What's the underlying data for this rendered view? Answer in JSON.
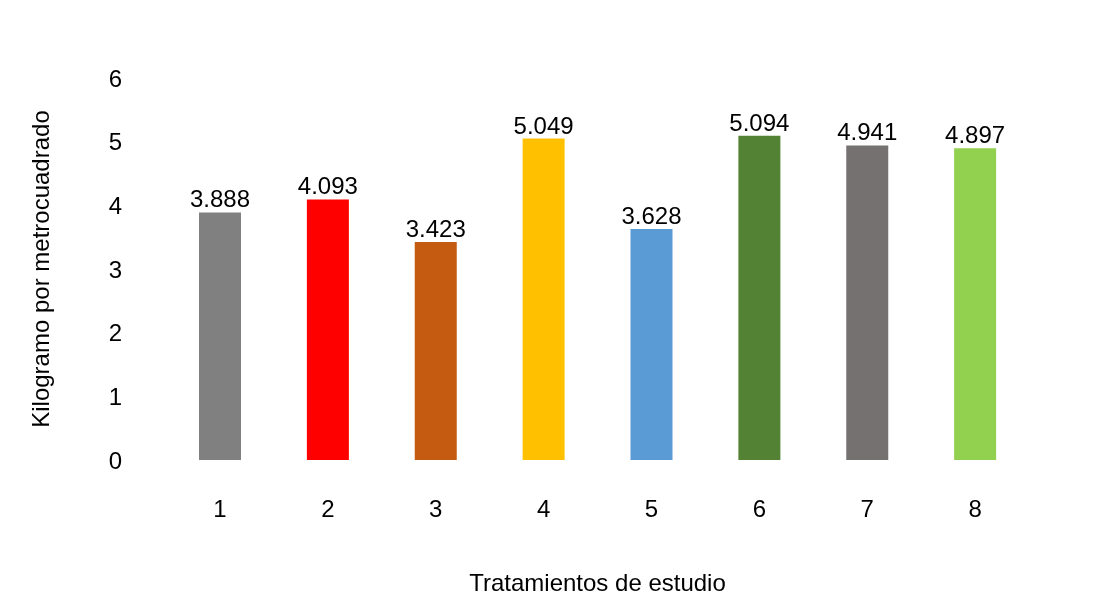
{
  "chart_data": {
    "type": "bar",
    "xlabel": "Tratamientos de estudio",
    "ylabel": "Kilogramo por metrocuadrado",
    "categories": [
      "1",
      "2",
      "3",
      "4",
      "5",
      "6",
      "7",
      "8"
    ],
    "values": [
      3.888,
      4.093,
      3.423,
      5.049,
      3.628,
      5.094,
      4.941,
      4.897
    ],
    "colors": [
      "#808080",
      "#ff0000",
      "#c55a11",
      "#ffc000",
      "#5b9bd5",
      "#548235",
      "#767171",
      "#92d050"
    ],
    "ylim": [
      0,
      6
    ],
    "yticks": [
      0,
      1,
      2,
      3,
      4,
      5,
      6
    ],
    "data_labels": true,
    "grid": false,
    "legend": false
  }
}
